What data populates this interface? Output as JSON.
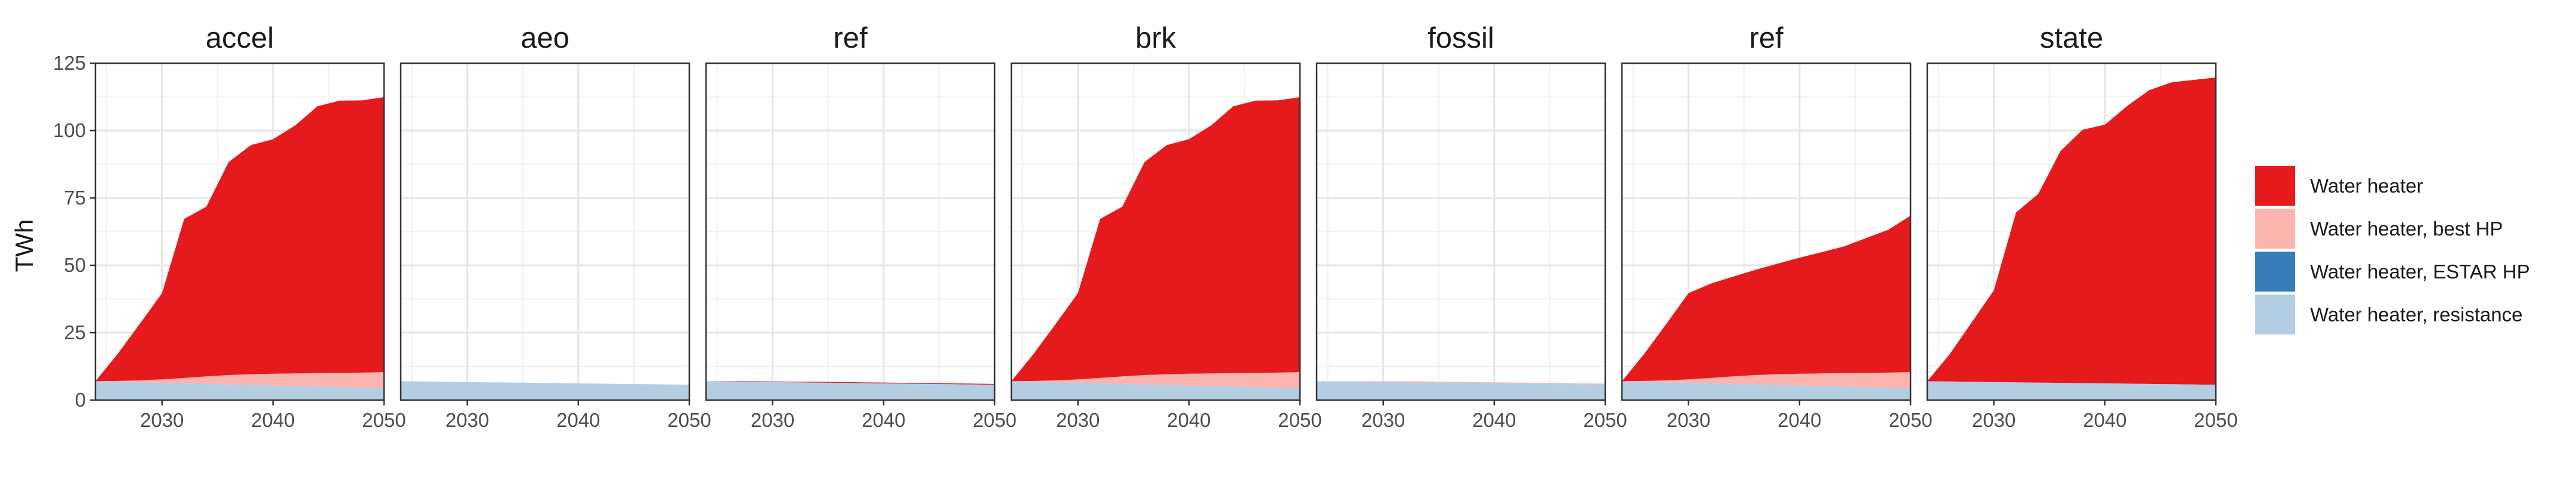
{
  "chart_data": {
    "type": "area",
    "stacked": true,
    "ylabel": "TWh",
    "ylim": [
      0,
      125
    ],
    "yticks": [
      0,
      25,
      50,
      75,
      100,
      125
    ],
    "xlim": [
      2024,
      2050
    ],
    "xticks": [
      2030,
      2040,
      2050
    ],
    "grid": true,
    "legend_position": "right",
    "x": [
      2024,
      2026,
      2028,
      2030,
      2032,
      2034,
      2036,
      2038,
      2040,
      2042,
      2044,
      2046,
      2048,
      2050
    ],
    "series": [
      {
        "key": "resistance",
        "name": "Water heater, resistance",
        "color": "#B3CDE3"
      },
      {
        "key": "estar",
        "name": "Water heater, ESTAR HP",
        "color": "#377EB8"
      },
      {
        "key": "besthp",
        "name": "Water heater, best HP",
        "color": "#FBB4AE"
      },
      {
        "key": "wh",
        "name": "Water heater",
        "color": "#E41A1C"
      }
    ],
    "facets": [
      {
        "title": "accel",
        "values": {
          "resistance": [
            7,
            6.8,
            6.6,
            6.4,
            6.2,
            6.0,
            5.8,
            5.6,
            5.4,
            5.2,
            5.0,
            4.8,
            4.6,
            4.4
          ],
          "estar": [
            0,
            0,
            0,
            0,
            0,
            0,
            0,
            0,
            0,
            0,
            0,
            0,
            0,
            0
          ],
          "besthp": [
            0,
            0.3,
            0.7,
            1.3,
            2.0,
            2.8,
            3.5,
            4.0,
            4.4,
            4.7,
            5.0,
            5.3,
            5.6,
            6.0
          ],
          "wh": [
            0,
            10,
            21,
            32,
            59,
            63,
            79,
            85,
            87,
            92,
            99,
            101,
            101,
            102
          ]
        }
      },
      {
        "title": "aeo",
        "values": {
          "resistance": [
            7,
            6.9,
            6.8,
            6.7,
            6.6,
            6.5,
            6.4,
            6.3,
            6.2,
            6.1,
            6.0,
            5.9,
            5.8,
            5.7
          ],
          "estar": [
            0,
            0,
            0,
            0,
            0,
            0,
            0,
            0,
            0,
            0,
            0,
            0,
            0,
            0
          ],
          "besthp": [
            0,
            0,
            0,
            0,
            0,
            0,
            0,
            0,
            0,
            0,
            0,
            0,
            0,
            0
          ],
          "wh": [
            0,
            0,
            0,
            0,
            0,
            0,
            0,
            0,
            0,
            0,
            0,
            0,
            0,
            0
          ]
        }
      },
      {
        "title": "ref",
        "values": {
          "resistance": [
            7,
            6.9,
            6.8,
            6.7,
            6.6,
            6.5,
            6.4,
            6.3,
            6.2,
            6.1,
            6.0,
            5.9,
            5.8,
            5.7
          ],
          "estar": [
            0,
            0,
            0,
            0,
            0,
            0,
            0,
            0,
            0,
            0,
            0,
            0,
            0,
            0
          ],
          "besthp": [
            0,
            0,
            0,
            0,
            0,
            0,
            0,
            0,
            0,
            0,
            0,
            0,
            0,
            0
          ],
          "wh": [
            0,
            0.1,
            0.2,
            0.2,
            0.2,
            0.3,
            0.3,
            0.3,
            0.3,
            0.3,
            0.3,
            0.3,
            0.3,
            0.3
          ]
        }
      },
      {
        "title": "brk",
        "values": {
          "resistance": [
            7,
            6.8,
            6.6,
            6.4,
            6.2,
            6.0,
            5.8,
            5.6,
            5.4,
            5.2,
            5.0,
            4.8,
            4.6,
            4.4
          ],
          "estar": [
            0,
            0,
            0,
            0,
            0,
            0,
            0,
            0,
            0,
            0,
            0,
            0,
            0,
            0
          ],
          "besthp": [
            0,
            0.3,
            0.7,
            1.3,
            2.0,
            2.8,
            3.5,
            4.0,
            4.4,
            4.7,
            5.0,
            5.3,
            5.6,
            6.0
          ],
          "wh": [
            0,
            10,
            21,
            32,
            59,
            63,
            79,
            85,
            87,
            92,
            99,
            101,
            101,
            102
          ]
        }
      },
      {
        "title": "fossil",
        "values": {
          "resistance": [
            7,
            6.9,
            6.8,
            6.7,
            6.6,
            6.5,
            6.4,
            6.3,
            6.2,
            6.1,
            6.0,
            5.9,
            5.8,
            5.7
          ],
          "estar": [
            0,
            0,
            0,
            0,
            0,
            0,
            0,
            0,
            0,
            0,
            0,
            0,
            0,
            0
          ],
          "besthp": [
            0,
            0.1,
            0.2,
            0.3,
            0.4,
            0.4,
            0.4,
            0.4,
            0.4,
            0.4,
            0.4,
            0.4,
            0.4,
            0.4
          ],
          "wh": [
            0,
            0,
            0,
            0,
            0,
            0,
            0,
            0,
            0,
            0,
            0,
            0,
            0,
            0
          ]
        }
      },
      {
        "title": "ref",
        "values": {
          "resistance": [
            7,
            6.8,
            6.6,
            6.4,
            6.2,
            6.0,
            5.8,
            5.6,
            5.4,
            5.2,
            5.0,
            4.8,
            4.6,
            4.4
          ],
          "estar": [
            0,
            0,
            0,
            0,
            0,
            0,
            0,
            0,
            0,
            0,
            0,
            0,
            0,
            0
          ],
          "besthp": [
            0,
            0.3,
            0.7,
            1.3,
            2.0,
            2.8,
            3.5,
            4.0,
            4.4,
            4.7,
            5.0,
            5.3,
            5.6,
            6.0
          ],
          "wh": [
            0,
            10,
            21,
            32,
            35,
            37,
            39,
            41,
            43,
            45,
            47,
            50,
            53,
            58
          ]
        }
      },
      {
        "title": "state",
        "values": {
          "resistance": [
            7,
            6.9,
            6.8,
            6.7,
            6.6,
            6.5,
            6.4,
            6.3,
            6.2,
            6.1,
            6.0,
            5.9,
            5.8,
            5.7
          ],
          "estar": [
            0,
            0,
            0,
            0,
            0,
            0,
            0,
            0,
            0,
            0,
            0,
            0,
            0,
            0
          ],
          "besthp": [
            0,
            0,
            0,
            0,
            0,
            0,
            0,
            0,
            0,
            0,
            0,
            0,
            0,
            0
          ],
          "wh": [
            0,
            10,
            22,
            34,
            63,
            70,
            86,
            94,
            96,
            103,
            109,
            112,
            113,
            114
          ]
        }
      }
    ]
  }
}
